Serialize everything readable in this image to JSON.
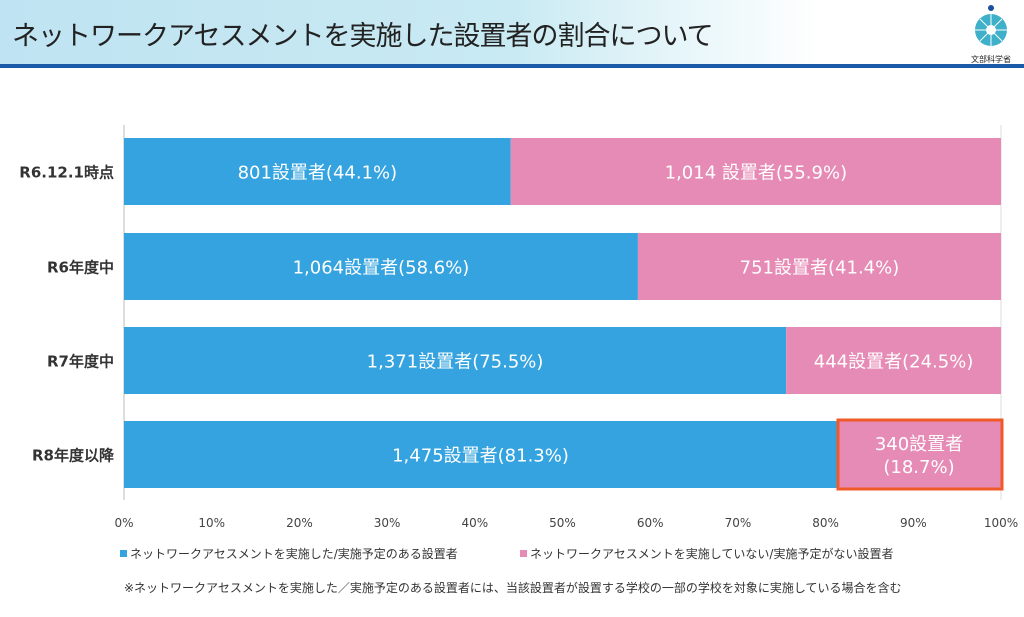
{
  "title": "ネットワークアセスメントを実施した設置者の割合について",
  "logo_text": "文部科学省",
  "note": "※ネットワークアセスメントを実施した／実施予定のある設置者には、当該設置者が設置する学校の一部の学校を対象に実施している場合を含む",
  "chart_data": {
    "type": "bar",
    "orientation": "horizontal",
    "stacked": "100%",
    "categories": [
      "R6.12.1時点",
      "R6年度中",
      "R7年度中",
      "R8年度以降"
    ],
    "xlim": [
      0,
      100
    ],
    "x_ticks": [
      "0%",
      "10%",
      "20%",
      "30%",
      "40%",
      "50%",
      "60%",
      "70%",
      "80%",
      "90%",
      "100%"
    ],
    "legend_position": "bottom",
    "series": [
      {
        "name": "ネットワークアセスメントを実施した/実施予定のある設置者",
        "color": "#35a3df",
        "values": [
          44.1,
          58.6,
          75.5,
          81.3
        ],
        "labels": [
          "801設置者(44.1%)",
          "1,064設置者(58.6%)",
          "1,371設置者(75.5%)",
          "1,475設置者(81.3%)"
        ]
      },
      {
        "name": "ネットワークアセスメントを実施していない/実施予定がない設置者",
        "color": "#e68bb5",
        "values": [
          55.9,
          41.4,
          24.5,
          18.7
        ],
        "labels": [
          "1,014 設置者(55.9%)",
          "751設置者(41.4%)",
          "444設置者(24.5%)",
          "340設置者\n(18.7%)"
        ]
      }
    ],
    "highlight": {
      "category": "R8年度以降",
      "series": 1,
      "color": "#f05a28"
    }
  }
}
